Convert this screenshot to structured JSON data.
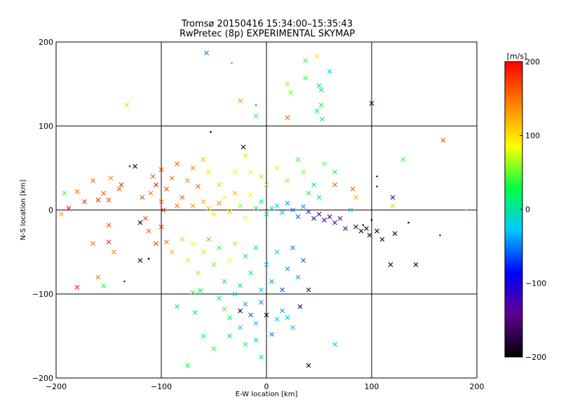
{
  "title": {
    "line1": "Tromsø 20150416 15:34:00–15:35:43",
    "line2": "RwPretec (8p) EXPERIMENTAL SKYMAP"
  },
  "chart_data": {
    "type": "scatter",
    "xlabel": "E-W location [km]",
    "ylabel": "N-S location [km]",
    "xlim": [
      -200,
      200
    ],
    "ylim": [
      -200,
      200
    ],
    "xticks": [
      -200,
      -100,
      0,
      100,
      200
    ],
    "yticks": [
      -200,
      -100,
      0,
      100,
      200
    ],
    "xtick_labels": [
      "−200",
      "−100",
      "0",
      "100",
      "200"
    ],
    "ytick_labels": [
      "−200",
      "−100",
      "0",
      "100",
      "200"
    ],
    "grid": true,
    "colorbar": {
      "label": "[m/s]",
      "range": [
        -200,
        200
      ],
      "ticks": [
        200,
        100,
        0,
        -100,
        -200
      ],
      "tick_labels": [
        "200",
        "100",
        "0",
        "−100",
        "−200"
      ],
      "colors": [
        "#000000",
        "#600090",
        "#0000ff",
        "#00c8ff",
        "#00ff40",
        "#ffff00",
        "#ff8000",
        "#ff0000"
      ]
    },
    "points": [
      [
        -57,
        187,
        -50,
        "x"
      ],
      [
        -33,
        175,
        150,
        "dot"
      ],
      [
        -133,
        125,
        110,
        "x"
      ],
      [
        -25,
        130,
        130,
        "x"
      ],
      [
        -10,
        125,
        170,
        "dot"
      ],
      [
        -10,
        112,
        40,
        "x"
      ],
      [
        20,
        110,
        160,
        "x"
      ],
      [
        100,
        127,
        -180,
        "x"
      ],
      [
        48,
        183,
        100,
        "x"
      ],
      [
        60,
        165,
        -20,
        "x"
      ],
      [
        37,
        178,
        40,
        "x"
      ],
      [
        37,
        157,
        40,
        "x"
      ],
      [
        50,
        148,
        10,
        "x"
      ],
      [
        52,
        143,
        20,
        "x"
      ],
      [
        52,
        125,
        30,
        "x"
      ],
      [
        48,
        118,
        20,
        "x"
      ],
      [
        53,
        108,
        10,
        "x"
      ],
      [
        20,
        150,
        60,
        "x"
      ],
      [
        23,
        140,
        50,
        "x"
      ],
      [
        168,
        83,
        170,
        "x"
      ],
      [
        -53,
        93,
        -200,
        "dot"
      ],
      [
        -22,
        75,
        -200,
        "x"
      ],
      [
        -20,
        65,
        100,
        "x"
      ],
      [
        -165,
        35,
        160,
        "x"
      ],
      [
        -155,
        20,
        160,
        "x"
      ],
      [
        -148,
        38,
        140,
        "x"
      ],
      [
        -140,
        25,
        160,
        "x"
      ],
      [
        -138,
        30,
        180,
        "x"
      ],
      [
        -150,
        12,
        170,
        "x"
      ],
      [
        -160,
        12,
        180,
        "x"
      ],
      [
        -173,
        10,
        180,
        "x"
      ],
      [
        -180,
        22,
        150,
        "x"
      ],
      [
        -192,
        20,
        40,
        "x"
      ],
      [
        -188,
        2,
        200,
        "x"
      ],
      [
        -125,
        52,
        -200,
        "x"
      ],
      [
        -130,
        52,
        -150,
        "dot"
      ],
      [
        -150,
        -18,
        170,
        "x"
      ],
      [
        -150,
        -38,
        180,
        "x"
      ],
      [
        -155,
        -90,
        40,
        "x"
      ],
      [
        -180,
        -92,
        190,
        "x"
      ],
      [
        -160,
        -80,
        150,
        "x"
      ],
      [
        -120,
        -60,
        -190,
        "x"
      ],
      [
        -112,
        -58,
        -200,
        "dot"
      ],
      [
        -135,
        -85,
        -150,
        "dot"
      ],
      [
        -108,
        40,
        160,
        "x"
      ],
      [
        -110,
        20,
        150,
        "x"
      ],
      [
        -118,
        15,
        170,
        "x"
      ],
      [
        -100,
        10,
        160,
        "x"
      ],
      [
        -95,
        25,
        170,
        "x"
      ],
      [
        -90,
        38,
        150,
        "x"
      ],
      [
        -85,
        5,
        150,
        "x"
      ],
      [
        -80,
        15,
        160,
        "x"
      ],
      [
        -70,
        5,
        130,
        "x"
      ],
      [
        -75,
        35,
        140,
        "x"
      ],
      [
        -65,
        28,
        160,
        "x"
      ],
      [
        -60,
        10,
        120,
        "x"
      ],
      [
        -55,
        2,
        110,
        "x"
      ],
      [
        -50,
        -5,
        100,
        "x"
      ],
      [
        -45,
        8,
        140,
        "x"
      ],
      [
        -40,
        15,
        90,
        "x"
      ],
      [
        -35,
        -2,
        110,
        "x"
      ],
      [
        -30,
        20,
        120,
        "x"
      ],
      [
        -25,
        5,
        60,
        "x"
      ],
      [
        -20,
        -10,
        80,
        "x"
      ],
      [
        -15,
        18,
        90,
        "x"
      ],
      [
        -10,
        2,
        30,
        "x"
      ],
      [
        -5,
        10,
        20,
        "x"
      ],
      [
        0,
        -5,
        10,
        "x"
      ],
      [
        5,
        2,
        -10,
        "x"
      ],
      [
        10,
        5,
        -20,
        "x"
      ],
      [
        15,
        -3,
        -30,
        "x"
      ],
      [
        20,
        8,
        -40,
        "x"
      ],
      [
        25,
        0,
        -50,
        "x"
      ],
      [
        30,
        -8,
        -60,
        "x"
      ],
      [
        35,
        4,
        -40,
        "x"
      ],
      [
        40,
        -2,
        -70,
        "x"
      ],
      [
        45,
        -10,
        -90,
        "x"
      ],
      [
        50,
        -5,
        -110,
        "x"
      ],
      [
        55,
        -12,
        -120,
        "x"
      ],
      [
        60,
        -8,
        -100,
        "x"
      ],
      [
        65,
        -15,
        -130,
        "x"
      ],
      [
        70,
        -10,
        -140,
        "x"
      ],
      [
        75,
        -22,
        -110,
        "x"
      ],
      [
        80,
        0,
        -20,
        "x"
      ],
      [
        85,
        -20,
        -180,
        "x"
      ],
      [
        90,
        -25,
        -200,
        "x"
      ],
      [
        95,
        -22,
        -200,
        "x"
      ],
      [
        98,
        -30,
        -190,
        "x"
      ],
      [
        92,
        -18,
        -160,
        "dot"
      ],
      [
        105,
        -25,
        -200,
        "x"
      ],
      [
        110,
        -35,
        -190,
        "x"
      ],
      [
        118,
        -65,
        -200,
        "x"
      ],
      [
        142,
        -65,
        -200,
        "x"
      ],
      [
        122,
        -28,
        -200,
        "x"
      ],
      [
        100,
        -12,
        -200,
        "dot"
      ],
      [
        135,
        -15,
        -200,
        "dot"
      ],
      [
        165,
        -30,
        -150,
        "dot"
      ],
      [
        190,
        0,
        120,
        "dot"
      ],
      [
        105,
        40,
        -100,
        "dot"
      ],
      [
        105,
        28,
        -150,
        "dot"
      ],
      [
        130,
        60,
        40,
        "x"
      ],
      [
        120,
        15,
        -100,
        "x"
      ],
      [
        -95,
        -38,
        150,
        "x"
      ],
      [
        -90,
        -50,
        120,
        "x"
      ],
      [
        -80,
        -35,
        110,
        "x"
      ],
      [
        -75,
        -60,
        100,
        "x"
      ],
      [
        -70,
        -40,
        90,
        "x"
      ],
      [
        -65,
        -75,
        60,
        "x"
      ],
      [
        -60,
        -50,
        70,
        "x"
      ],
      [
        -55,
        -35,
        130,
        "x"
      ],
      [
        -50,
        -65,
        50,
        "x"
      ],
      [
        -45,
        -45,
        40,
        "x"
      ],
      [
        -40,
        -85,
        20,
        "x"
      ],
      [
        -35,
        -60,
        80,
        "x"
      ],
      [
        -30,
        -40,
        60,
        "x"
      ],
      [
        -25,
        -90,
        -20,
        "x"
      ],
      [
        -20,
        -55,
        30,
        "x"
      ],
      [
        -15,
        -75,
        10,
        "x"
      ],
      [
        -10,
        -45,
        -10,
        "x"
      ],
      [
        -5,
        -95,
        -20,
        "x"
      ],
      [
        0,
        -65,
        -30,
        "x"
      ],
      [
        5,
        -85,
        -40,
        "x"
      ],
      [
        10,
        -50,
        -30,
        "x"
      ],
      [
        15,
        -95,
        -60,
        "x"
      ],
      [
        20,
        -70,
        -40,
        "x"
      ],
      [
        25,
        -45,
        -50,
        "x"
      ],
      [
        30,
        -80,
        -40,
        "x"
      ],
      [
        35,
        -60,
        -60,
        "x"
      ],
      [
        40,
        -95,
        -160,
        "x"
      ],
      [
        -45,
        -105,
        20,
        "x"
      ],
      [
        -40,
        -118,
        40,
        "x"
      ],
      [
        -35,
        -128,
        10,
        "x"
      ],
      [
        -30,
        -100,
        -10,
        "x"
      ],
      [
        -25,
        -140,
        -20,
        "x"
      ],
      [
        -20,
        -112,
        -40,
        "x"
      ],
      [
        -15,
        -125,
        -60,
        "x"
      ],
      [
        -10,
        -135,
        -30,
        "x"
      ],
      [
        -5,
        -110,
        -40,
        "x"
      ],
      [
        0,
        -125,
        -200,
        "x"
      ],
      [
        5,
        -148,
        -50,
        "x"
      ],
      [
        10,
        -130,
        -30,
        "x"
      ],
      [
        15,
        -120,
        -40,
        "x"
      ],
      [
        20,
        -128,
        -30,
        "x"
      ],
      [
        25,
        -140,
        -30,
        "x"
      ],
      [
        -85,
        -115,
        10,
        "x"
      ],
      [
        -75,
        -185,
        30,
        "x"
      ],
      [
        -60,
        -150,
        30,
        "x"
      ],
      [
        -50,
        -165,
        40,
        "x"
      ],
      [
        -35,
        -150,
        10,
        "x"
      ],
      [
        -20,
        -160,
        20,
        "x"
      ],
      [
        -5,
        -175,
        10,
        "x"
      ],
      [
        -10,
        -155,
        -30,
        "x"
      ],
      [
        40,
        -185,
        -200,
        "x"
      ],
      [
        32,
        -115,
        -180,
        "x"
      ],
      [
        65,
        -160,
        -30,
        "x"
      ],
      [
        -25,
        -120,
        -200,
        "x"
      ],
      [
        -70,
        -98,
        40,
        "x"
      ],
      [
        -63,
        -96,
        30,
        "x"
      ],
      [
        -68,
        -122,
        10,
        "x"
      ],
      [
        65,
        30,
        160,
        "x"
      ],
      [
        55,
        55,
        50,
        "x"
      ],
      [
        65,
        45,
        30,
        "x"
      ],
      [
        30,
        60,
        40,
        "x"
      ],
      [
        35,
        45,
        60,
        "x"
      ],
      [
        20,
        35,
        60,
        "x"
      ],
      [
        10,
        50,
        70,
        "x"
      ],
      [
        -5,
        40,
        100,
        "x"
      ],
      [
        -15,
        45,
        80,
        "x"
      ],
      [
        0,
        30,
        60,
        "x"
      ],
      [
        -30,
        45,
        90,
        "x"
      ],
      [
        -45,
        30,
        110,
        "x"
      ],
      [
        -55,
        45,
        100,
        "x"
      ],
      [
        -60,
        60,
        120,
        "x"
      ],
      [
        -70,
        50,
        140,
        "x"
      ],
      [
        -85,
        55,
        160,
        "x"
      ],
      [
        -100,
        48,
        170,
        "x"
      ],
      [
        -105,
        30,
        190,
        "x"
      ],
      [
        -115,
        -10,
        170,
        "x"
      ],
      [
        -112,
        -25,
        160,
        "x"
      ],
      [
        -100,
        -20,
        180,
        "x"
      ],
      [
        -120,
        -15,
        -200,
        "x"
      ],
      [
        -105,
        -40,
        170,
        "x"
      ],
      [
        -98,
        0,
        190,
        "x"
      ],
      [
        40,
        20,
        20,
        "x"
      ],
      [
        45,
        30,
        10,
        "x"
      ],
      [
        50,
        15,
        -10,
        "x"
      ],
      [
        85,
        15,
        120,
        "x"
      ],
      [
        82,
        25,
        160,
        "x"
      ],
      [
        -195,
        -5,
        130,
        "x"
      ],
      [
        -165,
        -40,
        150,
        "x"
      ],
      [
        -145,
        -50,
        140,
        "x"
      ],
      [
        120,
        5,
        110,
        "x"
      ]
    ]
  }
}
